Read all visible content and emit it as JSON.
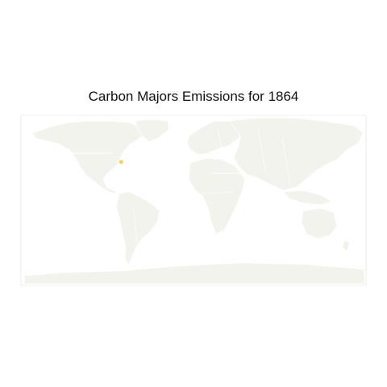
{
  "title": "Carbon Majors Emissions for 1864",
  "colors": {
    "land": "#f3f3ee",
    "border": "#ffffff",
    "frame": "#eeeeea",
    "marker": "#f6cf5a"
  },
  "markers": [
    {
      "name": "emission-point",
      "lon": -75.5,
      "lat": 40.6
    }
  ]
}
